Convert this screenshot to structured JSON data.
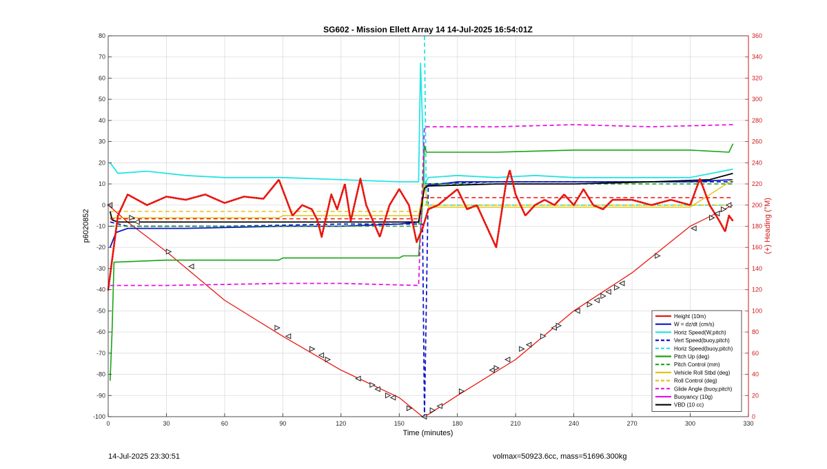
{
  "figure": {
    "footer_left": "14-Jul-2025 23:30:51",
    "footer_right": "volmax=50923.6cc, mass=51696.300kg"
  },
  "chart_data": {
    "type": "line",
    "title": "SG602 - Mission Ellett Array 14 14-Jul-2025 16:54:01Z",
    "xlabel": "Time (minutes)",
    "ylabel": "p6020852",
    "y2label": "(+) Heading (°M)",
    "xlim": [
      0,
      330
    ],
    "ylim": [
      -100,
      80
    ],
    "y2lim": [
      0,
      360
    ],
    "xticks": [
      0,
      30,
      60,
      90,
      120,
      150,
      180,
      210,
      240,
      270,
      300,
      330
    ],
    "yticks": [
      -100,
      -90,
      -80,
      -70,
      -60,
      -50,
      -40,
      -30,
      -20,
      -10,
      0,
      10,
      20,
      30,
      40,
      50,
      60,
      70,
      80
    ],
    "y2ticks": [
      0,
      20,
      40,
      60,
      80,
      100,
      120,
      140,
      160,
      180,
      200,
      220,
      240,
      260,
      280,
      300,
      320,
      340,
      360
    ],
    "grid": true,
    "legend_position": "bottom-right",
    "colors": {
      "height": "#e8150f",
      "w": "#0c14c8",
      "horiz": "#24e4e4",
      "pitch": "#14a414",
      "roll": "#e4c414",
      "glide": "#e414e4",
      "vbd": "#000000",
      "right_axis": "#d01818"
    },
    "legend": [
      {
        "label": "Height (10m)",
        "color": "#e8150f",
        "dash": false
      },
      {
        "label": "W = dz/dt (cm/s)",
        "color": "#0c14c8",
        "dash": false
      },
      {
        "label": "Horiz Speed(W,pitch)",
        "color": "#24e4e4",
        "dash": false
      },
      {
        "label": "Vert Speed(buoy,pitch)",
        "color": "#0c14c8",
        "dash": true
      },
      {
        "label": "Horiz Speed(buoy,pitch)",
        "color": "#24e4e4",
        "dash": true
      },
      {
        "label": "Pitch Up (deg)",
        "color": "#14a414",
        "dash": false
      },
      {
        "label": "Pitch Control (mm)",
        "color": "#14a414",
        "dash": true
      },
      {
        "label": "Vehicle Roll Stbd (deg)",
        "color": "#e4c414",
        "dash": false
      },
      {
        "label": "Roll Control (deg)",
        "color": "#e4c414",
        "dash": true
      },
      {
        "label": "Glide Angle (buoy,pitch)",
        "color": "#e414e4",
        "dash": true
      },
      {
        "label": "Buoyancy (10g)",
        "color": "#e414e4",
        "dash": false
      },
      {
        "label": "VBD (10 cc)",
        "color": "#000000",
        "dash": false
      }
    ],
    "series": [
      {
        "name": "Height (10m)",
        "points": [
          [
            0,
            0
          ],
          [
            10,
            -8
          ],
          [
            30,
            -22
          ],
          [
            60,
            -45
          ],
          [
            90,
            -62
          ],
          [
            120,
            -78
          ],
          [
            150,
            -91
          ],
          [
            162,
            -100
          ],
          [
            165,
            -99
          ],
          [
            180,
            -90
          ],
          [
            210,
            -73
          ],
          [
            240,
            -50
          ],
          [
            270,
            -32
          ],
          [
            300,
            -10
          ],
          [
            322,
            0
          ]
        ]
      },
      {
        "name": "W = dz/dt (cm/s)",
        "points": [
          [
            1,
            -20
          ],
          [
            4,
            -13
          ],
          [
            10,
            -11
          ],
          [
            40,
            -11
          ],
          [
            90,
            -10
          ],
          [
            120,
            -10
          ],
          [
            150,
            -9
          ],
          [
            160,
            -8
          ],
          [
            163,
            9
          ],
          [
            180,
            11
          ],
          [
            210,
            11
          ],
          [
            240,
            11
          ],
          [
            280,
            11
          ],
          [
            300,
            11
          ],
          [
            322,
            12
          ]
        ]
      },
      {
        "name": "Horiz Speed(W,pitch)",
        "points": [
          [
            1,
            20
          ],
          [
            5,
            15
          ],
          [
            20,
            16
          ],
          [
            40,
            14
          ],
          [
            60,
            13
          ],
          [
            90,
            13
          ],
          [
            120,
            12
          ],
          [
            150,
            11
          ],
          [
            160,
            11
          ],
          [
            161,
            67
          ],
          [
            163,
            10
          ],
          [
            165,
            13
          ],
          [
            180,
            14
          ],
          [
            200,
            13
          ],
          [
            220,
            14
          ],
          [
            240,
            13
          ],
          [
            270,
            13
          ],
          [
            300,
            13
          ],
          [
            322,
            17
          ]
        ]
      },
      {
        "name": "Vert Speed(buoy,pitch)",
        "points": [
          [
            1,
            -8
          ],
          [
            10,
            -10
          ],
          [
            60,
            -10
          ],
          [
            120,
            -9
          ],
          [
            162,
            -9
          ],
          [
            163,
            -100
          ],
          [
            165,
            10
          ],
          [
            200,
            11
          ],
          [
            260,
            11
          ],
          [
            322,
            11
          ]
        ]
      },
      {
        "name": "Horiz Speed(buoy,pitch)",
        "points": [
          [
            163,
            80
          ],
          [
            164,
            0
          ],
          [
            165,
            0
          ],
          [
            322,
            0
          ]
        ]
      },
      {
        "name": "Pitch Up (deg)",
        "points": [
          [
            1,
            -83
          ],
          [
            2,
            -60
          ],
          [
            3,
            -27
          ],
          [
            30,
            -26
          ],
          [
            60,
            -26
          ],
          [
            88,
            -26
          ],
          [
            90,
            -25
          ],
          [
            150,
            -25
          ],
          [
            152,
            -24
          ],
          [
            160,
            -24
          ],
          [
            162,
            0
          ],
          [
            163,
            28
          ],
          [
            164,
            25
          ],
          [
            200,
            25
          ],
          [
            240,
            26
          ],
          [
            270,
            26
          ],
          [
            300,
            26
          ],
          [
            320,
            25
          ],
          [
            322,
            29
          ]
        ]
      },
      {
        "name": "Pitch Control (mm)",
        "points": [
          [
            1,
            -10
          ],
          [
            60,
            -10
          ],
          [
            120,
            -10
          ],
          [
            160,
            -10
          ],
          [
            163,
            10
          ],
          [
            322,
            10
          ]
        ]
      },
      {
        "name": "Vehicle Roll Stbd (deg)",
        "points": [
          [
            1,
            -6
          ],
          [
            20,
            -6
          ],
          [
            60,
            -6
          ],
          [
            88,
            -6
          ],
          [
            90,
            -5
          ],
          [
            120,
            -5
          ],
          [
            160,
            -5
          ],
          [
            163,
            10
          ],
          [
            165,
            -1
          ],
          [
            180,
            -1
          ],
          [
            200,
            -1
          ],
          [
            220,
            -1
          ],
          [
            240,
            -1
          ],
          [
            280,
            -1
          ],
          [
            300,
            -1
          ],
          [
            322,
            12
          ]
        ]
      },
      {
        "name": "Roll Control (deg)",
        "points": [
          [
            1,
            -3
          ],
          [
            160,
            -3
          ],
          [
            163,
            0
          ],
          [
            322,
            0
          ]
        ]
      },
      {
        "name": "Glide Angle (buoy,pitch)",
        "points": [
          [
            1,
            -38
          ],
          [
            30,
            -38
          ],
          [
            90,
            -37
          ],
          [
            120,
            -37
          ],
          [
            160,
            -38
          ],
          [
            163,
            37
          ],
          [
            200,
            37
          ],
          [
            240,
            38
          ],
          [
            280,
            37
          ],
          [
            322,
            38
          ]
        ]
      },
      {
        "name": "VBD (10 cc)",
        "points": [
          [
            1,
            -3
          ],
          [
            2,
            -7
          ],
          [
            5,
            -8
          ],
          [
            60,
            -8
          ],
          [
            120,
            -8
          ],
          [
            160,
            -8
          ],
          [
            163,
            8
          ],
          [
            165,
            9
          ],
          [
            200,
            10
          ],
          [
            240,
            10
          ],
          [
            280,
            11
          ],
          [
            310,
            12
          ],
          [
            322,
            15
          ]
        ]
      },
      {
        "name": "Heading",
        "axis": "right",
        "points": [
          [
            0,
            120
          ],
          [
            5,
            190
          ],
          [
            10,
            210
          ],
          [
            20,
            200
          ],
          [
            30,
            208
          ],
          [
            40,
            205
          ],
          [
            50,
            210
          ],
          [
            60,
            202
          ],
          [
            70,
            208
          ],
          [
            80,
            206
          ],
          [
            88,
            224
          ],
          [
            95,
            190
          ],
          [
            100,
            200
          ],
          [
            105,
            196
          ],
          [
            108,
            185
          ],
          [
            110,
            170
          ],
          [
            115,
            210
          ],
          [
            118,
            196
          ],
          [
            122,
            220
          ],
          [
            125,
            185
          ],
          [
            130,
            225
          ],
          [
            133,
            200
          ],
          [
            140,
            170
          ],
          [
            145,
            200
          ],
          [
            150,
            215
          ],
          [
            155,
            200
          ],
          [
            159,
            165
          ],
          [
            162,
            178
          ],
          [
            165,
            196
          ],
          [
            170,
            200
          ],
          [
            180,
            215
          ],
          [
            185,
            196
          ],
          [
            190,
            200
          ],
          [
            195,
            180
          ],
          [
            200,
            160
          ],
          [
            205,
            220
          ],
          [
            207,
            233
          ],
          [
            210,
            210
          ],
          [
            215,
            190
          ],
          [
            220,
            200
          ],
          [
            225,
            205
          ],
          [
            230,
            200
          ],
          [
            235,
            210
          ],
          [
            240,
            200
          ],
          [
            245,
            215
          ],
          [
            250,
            200
          ],
          [
            255,
            196
          ],
          [
            260,
            205
          ],
          [
            270,
            205
          ],
          [
            280,
            200
          ],
          [
            290,
            205
          ],
          [
            300,
            200
          ],
          [
            305,
            225
          ],
          [
            310,
            200
          ],
          [
            315,
            185
          ],
          [
            318,
            175
          ],
          [
            320,
            190
          ],
          [
            322,
            185
          ]
        ]
      },
      {
        "name": "Heading target",
        "axis": "right",
        "points": [
          [
            1,
            187
          ],
          [
            160,
            187
          ],
          [
            162,
            207
          ],
          [
            322,
            207
          ]
        ]
      }
    ],
    "height_markers": [
      [
        1,
        0
      ],
      [
        12,
        -6
      ],
      [
        15,
        -8
      ],
      [
        31,
        -22
      ],
      [
        43,
        -29
      ],
      [
        87,
        -58
      ],
      [
        93,
        -62
      ],
      [
        105,
        -68
      ],
      [
        110,
        -71
      ],
      [
        113,
        -73
      ],
      [
        129,
        -82
      ],
      [
        136,
        -85
      ],
      [
        139,
        -87
      ],
      [
        144,
        -90
      ],
      [
        147,
        -91
      ],
      [
        155,
        -96
      ],
      [
        163,
        -100
      ],
      [
        167,
        -97
      ],
      [
        171,
        -95
      ],
      [
        182,
        -88
      ],
      [
        198,
        -78
      ],
      [
        200,
        -77
      ],
      [
        206,
        -73
      ],
      [
        213,
        -68
      ],
      [
        217,
        -66
      ],
      [
        224,
        -62
      ],
      [
        230,
        -58
      ],
      [
        232,
        -57
      ],
      [
        242,
        -50
      ],
      [
        248,
        -47
      ],
      [
        252,
        -45
      ],
      [
        255,
        -43
      ],
      [
        258,
        -41
      ],
      [
        262,
        -39
      ],
      [
        265,
        -37
      ],
      [
        283,
        -24
      ],
      [
        302,
        -11
      ],
      [
        311,
        -6
      ],
      [
        314,
        -4
      ],
      [
        317,
        -2
      ],
      [
        320,
        0
      ]
    ]
  }
}
